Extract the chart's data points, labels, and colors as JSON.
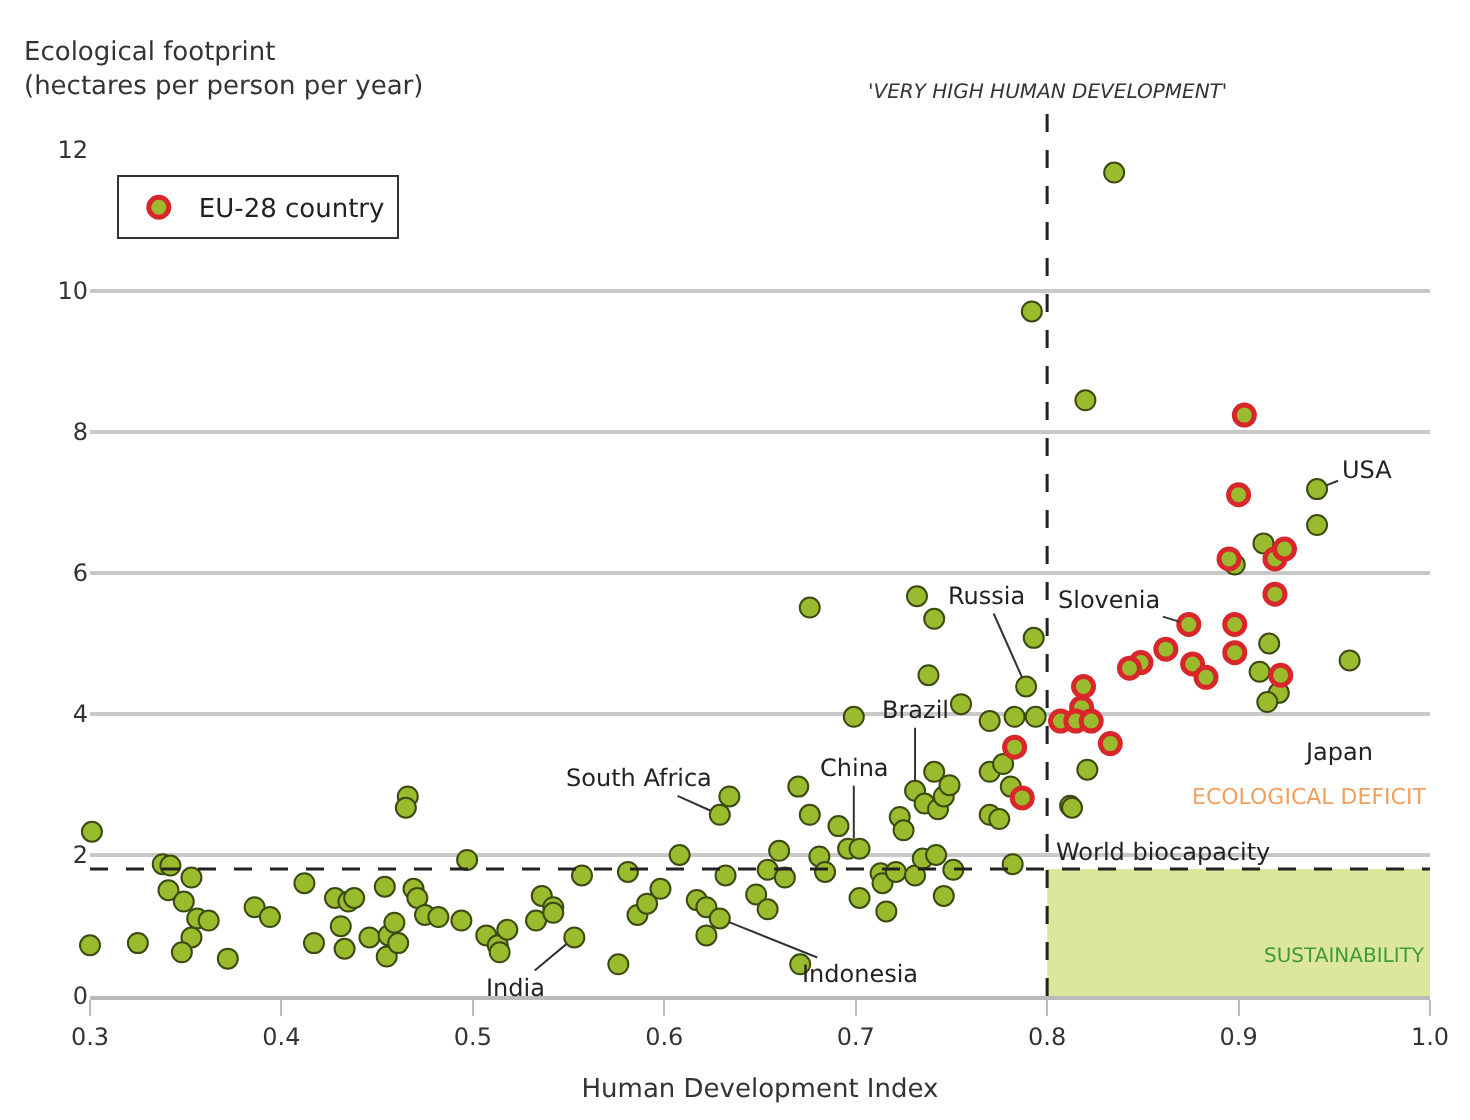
{
  "chart_data": {
    "type": "scatter",
    "xlabel": "Human Development Index",
    "ylabel": "Ecological footprint\n(hectares per person per year)",
    "xlim": [
      0.3,
      1.0
    ],
    "xticks": [
      0.3,
      0.4,
      0.5,
      0.6,
      0.7,
      0.8,
      0.9,
      {
        "value": 1.0,
        "label": "1.0"
      }
    ],
    "ylim": [
      0,
      12
    ],
    "yticks": [
      0,
      2,
      4,
      6,
      8,
      10,
      12
    ],
    "grid": "y",
    "legend": "top left",
    "marker": "circle",
    "series": [
      {
        "color": "#9bbb2f",
        "x": [
          0.301,
          0.3,
          0.325,
          0.338,
          0.342,
          0.353,
          0.341,
          0.349,
          0.356,
          0.362,
          0.353,
          0.348,
          0.372,
          0.386,
          0.394,
          0.412,
          0.417,
          0.428,
          0.435,
          0.438,
          0.431,
          0.433,
          0.446,
          0.454,
          0.455,
          0.456,
          0.459,
          0.461,
          0.466,
          0.465,
          0.469,
          0.471,
          0.475,
          0.482,
          0.494,
          0.497,
          0.507,
          0.513,
          0.518,
          0.514,
          0.533,
          0.536,
          0.542,
          0.542,
          0.553,
          0.557,
          0.576,
          0.581,
          0.586,
          0.591,
          0.598,
          0.608,
          0.617,
          0.622,
          0.629,
          0.622,
          0.632,
          0.634,
          0.629,
          0.648,
          0.654,
          0.654,
          0.66,
          0.663,
          0.67,
          0.676,
          0.676,
          0.671,
          0.681,
          0.684,
          0.691,
          0.696,
          0.702,
          0.699,
          0.702,
          0.713,
          0.714,
          0.716,
          0.721,
          0.723,
          0.725,
          0.731,
          0.735,
          0.742,
          0.751,
          0.746,
          0.731,
          0.736,
          0.741,
          0.743,
          0.746,
          0.749,
          0.732,
          0.741,
          0.738,
          0.755,
          0.77,
          0.783,
          0.794,
          0.789,
          0.793,
          0.77,
          0.777,
          0.77,
          0.775,
          0.781,
          0.782,
          0.812,
          0.835,
          0.792,
          0.82,
          0.941,
          0.941,
          0.913,
          0.898,
          0.916,
          0.911,
          0.921,
          0.915,
          0.958,
          0.821,
          0.813
        ],
        "values": [
          2.33,
          0.72,
          0.75,
          1.87,
          1.85,
          1.68,
          1.5,
          1.34,
          1.1,
          1.07,
          0.83,
          0.62,
          0.53,
          1.26,
          1.12,
          1.6,
          0.75,
          1.39,
          1.34,
          1.39,
          0.99,
          0.67,
          0.83,
          1.55,
          0.56,
          0.86,
          1.04,
          0.75,
          2.83,
          2.67,
          1.52,
          1.39,
          1.15,
          1.12,
          1.07,
          1.93,
          0.86,
          0.72,
          0.94,
          0.62,
          1.07,
          1.42,
          1.26,
          1.18,
          0.83,
          1.71,
          0.45,
          1.76,
          1.15,
          1.31,
          1.52,
          2.0,
          1.36,
          1.26,
          1.1,
          0.86,
          1.71,
          2.83,
          2.57,
          1.44,
          1.23,
          1.79,
          2.06,
          1.68,
          2.97,
          2.57,
          5.51,
          0.45,
          1.98,
          1.76,
          2.41,
          2.09,
          2.09,
          3.96,
          1.39,
          1.74,
          1.6,
          1.2,
          1.76,
          2.54,
          2.35,
          1.71,
          1.95,
          2.0,
          1.79,
          1.42,
          2.91,
          2.73,
          3.18,
          2.65,
          2.83,
          2.99,
          5.67,
          5.35,
          4.55,
          4.14,
          3.9,
          3.96,
          3.96,
          4.39,
          5.08,
          3.18,
          3.29,
          2.57,
          2.51,
          2.97,
          1.87,
          2.7,
          11.68,
          9.71,
          8.45,
          7.19,
          6.68,
          6.42,
          6.12,
          5.0,
          4.6,
          4.3,
          4.17,
          4.76,
          3.21,
          2.67
        ]
      },
      {
        "name": "EU-28 country",
        "color": "#d9262a",
        "x": [
          0.783,
          0.787,
          0.903,
          0.9,
          0.919,
          0.924,
          0.895,
          0.919,
          0.874,
          0.898,
          0.862,
          0.849,
          0.843,
          0.876,
          0.898,
          0.922,
          0.883,
          0.819,
          0.818,
          0.807,
          0.815,
          0.823,
          0.833
        ],
        "values": [
          3.53,
          2.81,
          8.24,
          7.11,
          6.2,
          6.34,
          6.2,
          5.7,
          5.27,
          5.27,
          4.92,
          4.73,
          4.65,
          4.71,
          4.87,
          4.55,
          4.52,
          4.39,
          4.09,
          3.9,
          3.9,
          3.9,
          3.58
        ]
      }
    ],
    "ref_lines": [
      {
        "axis": "x",
        "value": 0.8,
        "label": "'VERY HIGH HUMAN DEVELOPMENT'",
        "line_style": "dashed",
        "color": "#222222"
      },
      {
        "axis": "y",
        "value": 1.8,
        "label": "World biocapacity",
        "line_style": "dashed",
        "color": "#222222"
      }
    ],
    "bands": [
      {
        "axis": "x",
        "from": 0.8,
        "to": 1.0,
        "label": "SUSTAINABILITY",
        "color": "#dde79c"
      }
    ],
    "annotations": [
      "ECOLOGICAL DEFICIT",
      {
        "text": "South Africa",
        "x": 0.629,
        "y": 2.57
      },
      {
        "text": "China",
        "x": 0.699,
        "y": 2.09
      },
      {
        "text": "Brazil",
        "x": 0.731,
        "y": 2.91
      },
      {
        "text": "Russia",
        "x": 0.789,
        "y": 4.39
      },
      {
        "text": "India",
        "x": 0.553,
        "y": 0.83
      },
      {
        "text": "Indonesia",
        "x": 0.629,
        "y": 1.1
      },
      {
        "text": "Slovenia",
        "x": 0.874,
        "y": 5.27
      },
      {
        "text": "USA",
        "x": 0.941,
        "y": 7.19
      },
      {
        "text": "Japan",
        "x": 0.915,
        "y": 4.17
      }
    ]
  }
}
